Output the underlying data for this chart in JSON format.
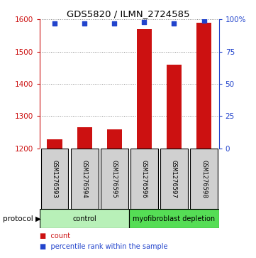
{
  "title": "GDS5820 / ILMN_2724585",
  "samples": [
    "GSM1276593",
    "GSM1276594",
    "GSM1276595",
    "GSM1276596",
    "GSM1276597",
    "GSM1276598"
  ],
  "counts": [
    1228,
    1265,
    1258,
    1570,
    1460,
    1590
  ],
  "percentile_ranks": [
    97,
    97,
    97,
    98,
    97,
    99
  ],
  "groups": [
    {
      "label": "control",
      "samples": [
        0,
        1,
        2
      ],
      "color": "#b8f0b8"
    },
    {
      "label": "myofibroblast depletion",
      "samples": [
        3,
        4,
        5
      ],
      "color": "#55dd55"
    }
  ],
  "ylim_left": [
    1200,
    1600
  ],
  "ylim_right": [
    0,
    100
  ],
  "yticks_left": [
    1200,
    1300,
    1400,
    1500,
    1600
  ],
  "yticks_right": [
    0,
    25,
    50,
    75,
    100
  ],
  "yticklabels_right": [
    "0",
    "25",
    "50",
    "75",
    "100%"
  ],
  "bar_color": "#cc1111",
  "dot_color": "#2244cc",
  "bar_width": 0.5,
  "background_color": "#ffffff",
  "plot_bg_color": "#ffffff",
  "label_box_color": "#d0d0d0",
  "left_axis_color": "#cc1111",
  "right_axis_color": "#2244cc",
  "grid_color": "#888888",
  "legend_count_color": "#cc1111",
  "legend_dot_color": "#2244cc"
}
